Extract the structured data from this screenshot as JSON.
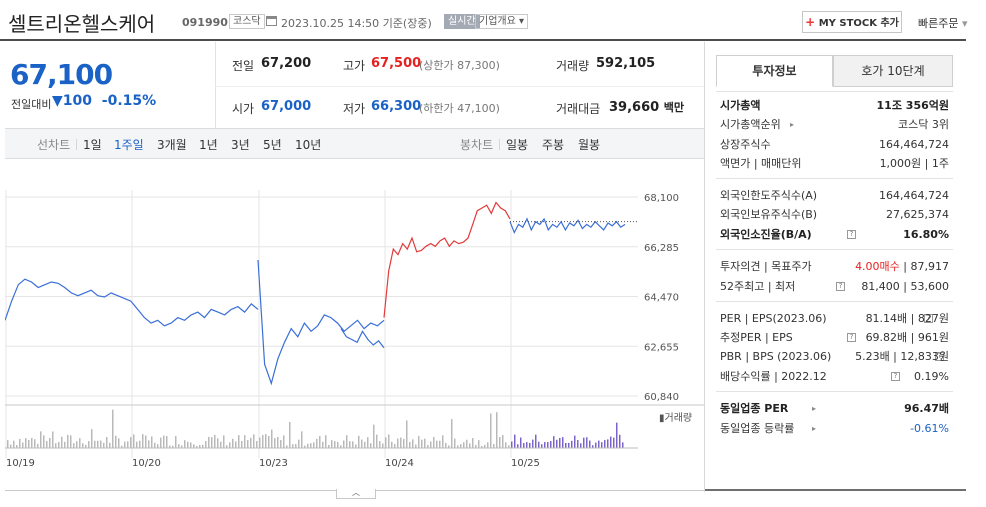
{
  "header": {
    "name": "셀트리온헬스케어",
    "code": "091990",
    "market": "코스닥",
    "datetime": "2023.10.25 14:50",
    "basis": "기준(장중)",
    "live": "실시간",
    "corp_info": "기업개요",
    "mystock": "MY STOCK 추가",
    "quick_order": "빠른주문"
  },
  "price": {
    "current": "67,100",
    "change_label": "전일대비",
    "change_arrow": "▼",
    "change": "100",
    "change_pct": "-0.15%"
  },
  "stats": {
    "prev_label": "전일",
    "prev": "67,200",
    "high_label": "고가",
    "high": "67,500",
    "upper_limit": "(상한가 87,300)",
    "volume_label": "거래량",
    "volume": "592,105",
    "open_label": "시가",
    "open": "67,000",
    "low_label": "저가",
    "low": "66,300",
    "lower_limit": "(하한가 47,100)",
    "amount_label": "거래대금",
    "amount": "39,660",
    "amount_unit": "백만"
  },
  "chart_tabs": {
    "line": "선차트",
    "d1": "1일",
    "w1": "1주일",
    "m3": "3개월",
    "y1": "1년",
    "y3": "3년",
    "y5": "5년",
    "y10": "10년",
    "candle": "봉차트",
    "daily": "일봉",
    "weekly": "주봉",
    "monthly": "월봉",
    "active": "1주일"
  },
  "chart_data": {
    "type": "line",
    "title": "",
    "x_ticks": [
      "10/19",
      "10/20",
      "10/23",
      "10/24",
      "10/25"
    ],
    "y_ticks": [
      68100,
      66285,
      64470,
      62655,
      60840
    ],
    "ylim": [
      60840,
      68100
    ],
    "volume_label": "거래량",
    "reference_line": 67200,
    "series": [
      {
        "segment": "10/19",
        "color": "#3a6fd8",
        "values": [
          63600,
          64300,
          64900,
          65100,
          65000,
          64800,
          64900,
          65000,
          64950,
          64800,
          64600,
          64500,
          64600,
          64700,
          64500,
          64450,
          64600,
          64500,
          64400,
          64300
        ]
      },
      {
        "segment": "10/20",
        "color": "#3a6fd8",
        "values": [
          64300,
          64000,
          63700,
          63500,
          63600,
          63400,
          63500,
          63700,
          63600,
          63800,
          63900,
          63700,
          64000,
          63900,
          63800,
          64000,
          64100,
          63900,
          64200,
          64000
        ]
      },
      {
        "segment": "10/23",
        "color": "#3a6fd8",
        "values": [
          65800,
          62000,
          61300,
          62200,
          62800,
          63300,
          63000,
          63500,
          63200,
          63400,
          63800,
          63700,
          63500,
          63200,
          63400,
          63600,
          63300,
          63500,
          63400,
          63600
        ]
      },
      {
        "segment": "10/24 AM",
        "color": "#3a6fd8",
        "values": [
          63300,
          63000,
          62900,
          62800,
          63200,
          62900,
          62700,
          62850,
          62600
        ]
      },
      {
        "segment": "10/24",
        "color": "#e23a3a",
        "values": [
          63700,
          65400,
          66200,
          66000,
          66400,
          66200,
          66600,
          66100,
          66150,
          66300,
          66400,
          66300,
          66500,
          66600,
          66300,
          66500,
          66400,
          66450,
          66600,
          67100,
          67600,
          67700,
          67800,
          67500,
          67900,
          67700,
          67600,
          67300
        ]
      },
      {
        "segment": "10/25",
        "color": "#3a6fd8",
        "values": [
          67200,
          66800,
          67100,
          67000,
          67300,
          66900,
          67200,
          67100,
          67300,
          66900,
          67100,
          67000,
          67200,
          66900,
          67150,
          67050,
          67250,
          66950,
          67100,
          67000,
          67200,
          67050,
          66900,
          67150,
          67050,
          67200,
          67000,
          67100
        ]
      }
    ]
  }
}
